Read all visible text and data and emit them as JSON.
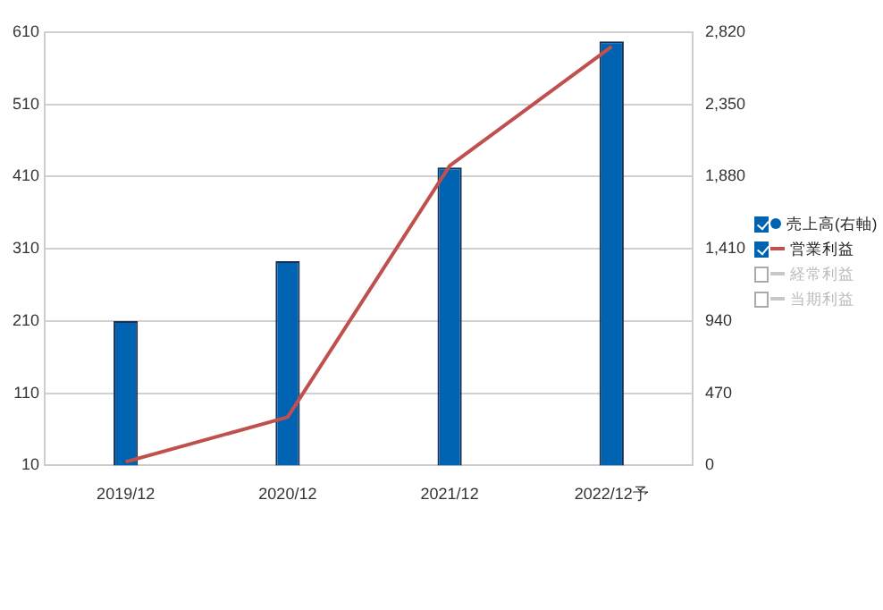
{
  "chart_data": {
    "type": "bar",
    "categories": [
      "2019/12",
      "2020/12",
      "2021/12",
      "2022/12予"
    ],
    "series": [
      {
        "name": "売上高(右軸)",
        "axis": "y2",
        "color": "#0063b1",
        "values": [
          940,
          1330,
          1940,
          2760
        ]
      },
      {
        "name": "営業利益",
        "type": "line",
        "color": "#c0504d",
        "values": [
          15,
          77,
          425,
          590
        ]
      },
      {
        "name": "経常利益",
        "type": "line",
        "color": "#c8c8c8",
        "values": [
          null,
          null,
          null,
          null
        ]
      },
      {
        "name": "当期利益",
        "type": "line",
        "color": "#c8c8c8",
        "values": [
          null,
          null,
          null,
          null
        ]
      }
    ],
    "ylim": [
      10,
      610
    ],
    "yticks": [
      10,
      110,
      210,
      310,
      410,
      510,
      610
    ],
    "y2lim": [
      0,
      2820
    ],
    "y2ticks": [
      0,
      470,
      940,
      {
        "value": 1410,
        "label": "1,410"
      },
      {
        "value": 1880,
        "label": "1,880"
      },
      {
        "value": 2350,
        "label": "2,350"
      },
      {
        "value": 2820,
        "label": "2,820"
      }
    ],
    "grid": "y",
    "legend": "right",
    "marker": "none",
    "line_style": "solid"
  }
}
